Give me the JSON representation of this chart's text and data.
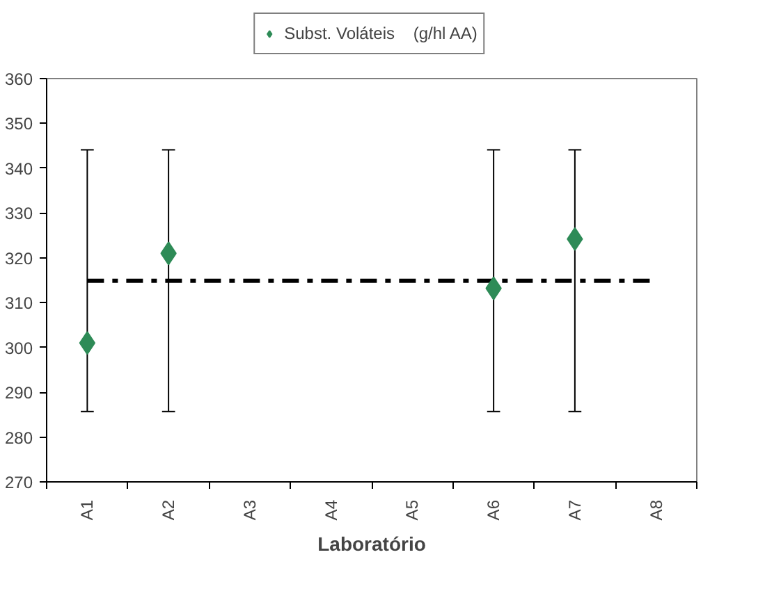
{
  "chart_data": {
    "type": "scatter",
    "xlabel": "Laboratório",
    "categories": [
      "A1",
      "A2",
      "A3",
      "A4",
      "A5",
      "A6",
      "A7",
      "A8"
    ],
    "series": [
      {
        "name": "Subst. Voláteis    (g/hl AA)",
        "color": "#2e8b57",
        "values": [
          301,
          321,
          null,
          null,
          null,
          313.2,
          324.2,
          null
        ],
        "errors": [
          [
            285.7,
            344.1
          ],
          [
            285.7,
            344.1
          ],
          null,
          null,
          null,
          [
            285.7,
            344.1
          ],
          [
            285.7,
            344.1
          ],
          null
        ]
      }
    ],
    "ylim": [
      270,
      360
    ],
    "yticks": [
      270,
      280,
      290,
      300,
      310,
      320,
      330,
      340,
      350,
      360
    ],
    "ref_lines": [
      {
        "axis": "y",
        "value": 314.9,
        "color": "#000000",
        "line_style": "dashdot"
      }
    ],
    "marker": "diamond",
    "legend": "top",
    "grid": false
  }
}
